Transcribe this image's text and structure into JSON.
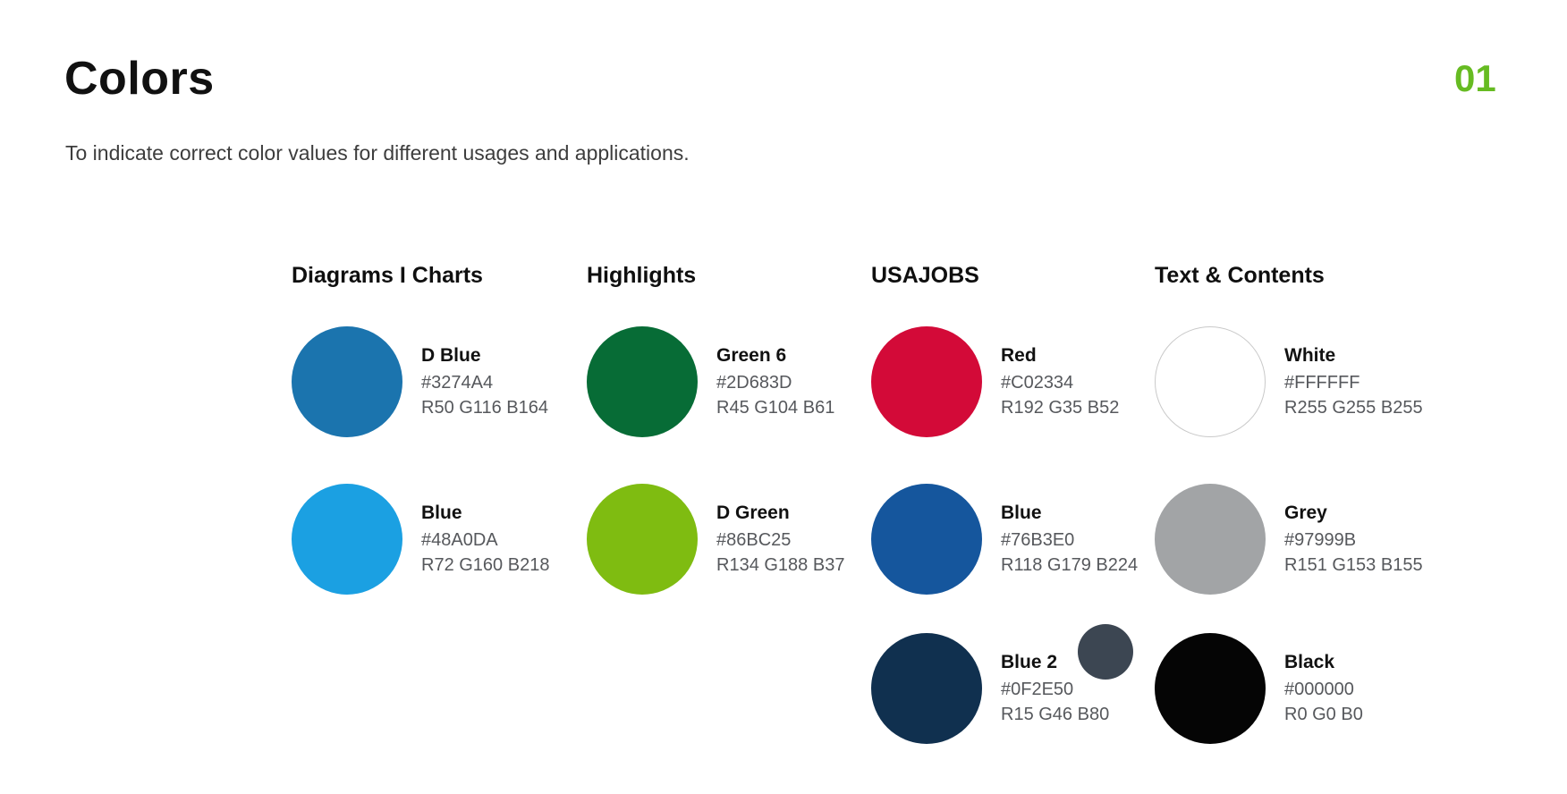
{
  "page": {
    "title": "Colors",
    "subtitle": "To indicate correct color values for different usages and applications.",
    "page_number": "01",
    "page_number_color": "#66BB22",
    "background_color": "#FFFFFF"
  },
  "columns": [
    {
      "header": "Diagrams I Charts",
      "swatches": [
        {
          "name": "D Blue",
          "hex": "#3274A4",
          "rgb": "R50 G116 B164",
          "circle_color": "#1B74AE"
        },
        {
          "name": "Blue",
          "hex": "#48A0DA",
          "rgb": "R72 G160 B218",
          "circle_color": "#1BA0E2"
        }
      ]
    },
    {
      "header": "Highlights",
      "swatches": [
        {
          "name": "Green 6",
          "hex": "#2D683D",
          "rgb": "R45 G104 B61",
          "circle_color": "#076C36"
        },
        {
          "name": "D Green",
          "hex": "#86BC25",
          "rgb": "R134 G188 B37",
          "circle_color": "#7FBC11"
        }
      ]
    },
    {
      "header": "USAJOBS",
      "swatches": [
        {
          "name": "Red",
          "hex": "#C02334",
          "rgb": "R192 G35 B52",
          "circle_color": "#D30A38"
        },
        {
          "name": "Blue",
          "hex": "#76B3E0",
          "rgb": "R118 G179 B224",
          "circle_color": "#15569D"
        },
        {
          "name": "Blue 2",
          "hex": "#0F2E50",
          "rgb": "R15 G46 B80",
          "circle_color": "#10304F"
        }
      ]
    },
    {
      "header": "Text & Contents",
      "swatches": [
        {
          "name": "White",
          "hex": "#FFFFFF",
          "rgb": "R255 G255 B255",
          "circle_color": "#FFFFFF",
          "circle_border_color": "#C9C9C9"
        },
        {
          "name": "Grey",
          "hex": "#97999B",
          "rgb": "R151 G153 B155",
          "circle_color": "#A2A4A6"
        },
        {
          "name": "Black",
          "hex": "#000000",
          "rgb": "R0 G0 B0",
          "circle_color": "#050505"
        }
      ]
    }
  ],
  "extras": {
    "blue2_secondary_circle_color": "#3C4652"
  }
}
